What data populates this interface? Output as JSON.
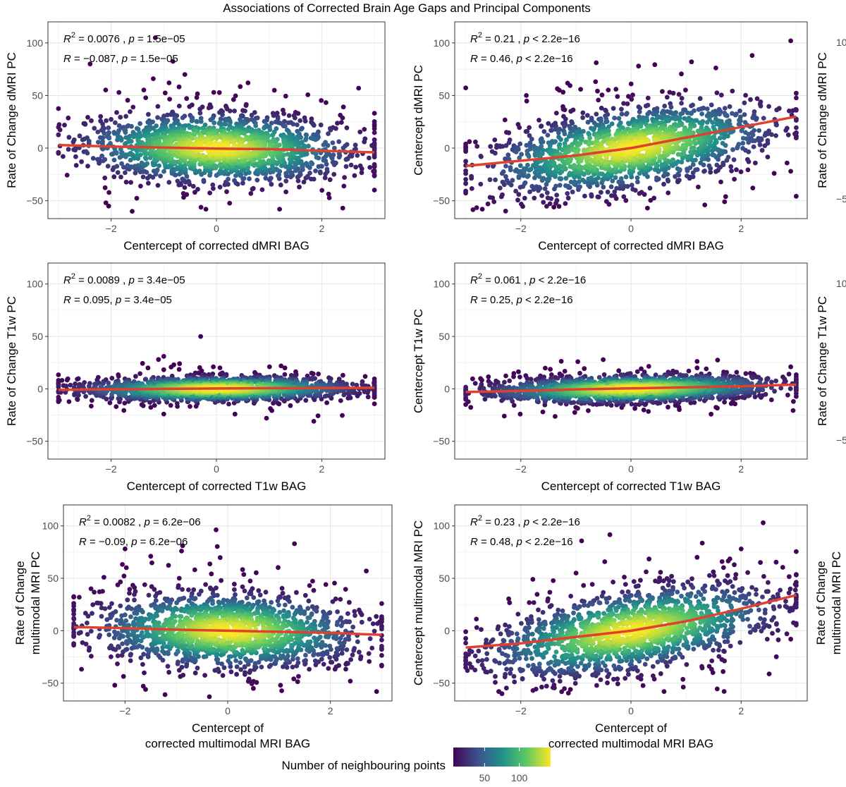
{
  "title": "Associations of Corrected Brain Age Gaps and Principal Components",
  "colorbar": {
    "title": "Number of neighbouring points",
    "ticks": [
      "50",
      "100"
    ],
    "tick_values": [
      50,
      100
    ],
    "range": [
      5,
      145
    ],
    "colors": [
      "#440154",
      "#3b528b",
      "#21908c",
      "#5dc963",
      "#fde725"
    ]
  },
  "fit_color": "#e0402e",
  "chart_data": [
    {
      "type": "scatter",
      "xlabel": "Centercept of corrected dMRI BAG",
      "ylabel": [
        "Rate of Change dMRI PC"
      ],
      "stats": [
        {
          "lhs": "R",
          "sup": "2",
          "val": " = 0.0076 , ",
          "pv": " = 1.5e−05"
        },
        {
          "lhs": "R",
          "sup": "",
          "val": " = −0.087, ",
          "pv": " = 1.5e−05"
        }
      ],
      "xlim": [
        -3.2,
        3.2
      ],
      "ylim": [
        -67,
        120
      ],
      "xticks": [
        -2,
        0,
        2
      ],
      "xtick_labels": [
        "−2",
        "0",
        "2"
      ],
      "yticks": [
        -50,
        0,
        50,
        100
      ],
      "ytick_labels": [
        "−50",
        "0",
        "50",
        "100"
      ],
      "grid": true,
      "fit_line": {
        "x": [
          -3,
          -2,
          -1,
          0,
          1,
          2,
          3
        ],
        "y": [
          3,
          1.5,
          0.5,
          -0.5,
          -1,
          -2.5,
          -4
        ]
      },
      "cloud": {
        "slope": -1.2,
        "intercept": 0,
        "sd": 16
      },
      "outliers": [
        [
          -2.4,
          80
        ],
        [
          -1.2,
          66
        ],
        [
          -0.9,
          62
        ],
        [
          -0.6,
          70
        ],
        [
          0.6,
          62
        ],
        [
          1.1,
          55
        ],
        [
          2.7,
          57
        ],
        [
          -2.1,
          -52
        ],
        [
          -0.2,
          -58
        ],
        [
          1.2,
          -58
        ],
        [
          2.4,
          -57
        ],
        [
          -1.6,
          -60
        ]
      ]
    },
    {
      "type": "scatter",
      "xlabel": "Centercept of corrected dMRI BAG",
      "ylabel": [
        "Centercept dMRI PC"
      ],
      "stats": [
        {
          "lhs": "R",
          "sup": "2",
          "val": " = 0.21 , ",
          "pv": " < 2.2e−16"
        },
        {
          "lhs": "R",
          "sup": "",
          "val": " = 0.46, ",
          "pv": " < 2.2e−16"
        }
      ],
      "xlim": [
        -3.2,
        3.2
      ],
      "ylim": [
        -67,
        120
      ],
      "xticks": [
        -2,
        0,
        2
      ],
      "xtick_labels": [
        "−2",
        "0",
        "2"
      ],
      "yticks": [
        -50,
        0,
        50,
        100
      ],
      "ytick_labels": [
        "−50",
        "0",
        "50",
        "100"
      ],
      "grid": true,
      "fit_line": {
        "x": [
          -3,
          -2,
          -1,
          0,
          1,
          2,
          3
        ],
        "y": [
          -17,
          -12,
          -7,
          0,
          10,
          20,
          30
        ]
      },
      "cloud": {
        "slope": 7.8,
        "intercept": 0,
        "sd": 18
      },
      "outliers": [
        [
          2.9,
          102
        ],
        [
          2.2,
          88
        ],
        [
          1.1,
          82
        ],
        [
          -1.3,
          55
        ],
        [
          -1.9,
          50
        ],
        [
          -2.7,
          -58
        ],
        [
          -1.4,
          -56
        ],
        [
          0.3,
          -57
        ],
        [
          1.7,
          -51
        ],
        [
          2.9,
          -22
        ],
        [
          2.6,
          -24
        ]
      ]
    },
    {
      "type": "scatter",
      "xlabel": "Centercept of corrected T1w BAG",
      "ylabel": [
        "Rate of Change T1w PC"
      ],
      "stats": [
        {
          "lhs": "R",
          "sup": "2",
          "val": " = 0.0089 , ",
          "pv": " = 3.4e−05"
        },
        {
          "lhs": "R",
          "sup": "",
          "val": " = 0.095, ",
          "pv": " = 3.4e−05"
        }
      ],
      "xlim": [
        -3.2,
        3.2
      ],
      "ylim": [
        -67,
        120
      ],
      "xticks": [
        -2,
        0,
        2
      ],
      "xtick_labels": [
        "−2",
        "0",
        "2"
      ],
      "yticks": [
        -50,
        0,
        50,
        100
      ],
      "ytick_labels": [
        "−50",
        "0",
        "50",
        "100"
      ],
      "grid": true,
      "fit_line": {
        "x": [
          -3,
          -2,
          -1,
          0,
          1,
          2,
          3
        ],
        "y": [
          -1,
          -0.5,
          0,
          0.3,
          0.6,
          0.8,
          1
        ]
      },
      "cloud": {
        "slope": 0.35,
        "intercept": 0,
        "sd": 5.5
      },
      "outliers": [
        [
          -0.3,
          50
        ],
        [
          -1.0,
          31
        ],
        [
          -1.1,
          28
        ],
        [
          -0.7,
          24
        ],
        [
          -1.0,
          -24
        ],
        [
          0.95,
          -28
        ],
        [
          -1.3,
          20
        ],
        [
          1.3,
          20
        ]
      ]
    },
    {
      "type": "scatter",
      "xlabel": "Centercept of corrected T1w BAG",
      "ylabel": [
        "Centercept T1w PC"
      ],
      "stats": [
        {
          "lhs": "R",
          "sup": "2",
          "val": " = 0.061 , ",
          "pv": " < 2.2e−16"
        },
        {
          "lhs": "R",
          "sup": "",
          "val": " = 0.25, ",
          "pv": " < 2.2e−16"
        }
      ],
      "xlim": [
        -3.2,
        3.2
      ],
      "ylim": [
        -67,
        120
      ],
      "xticks": [
        -2,
        0,
        2
      ],
      "xtick_labels": [
        "−2",
        "0",
        "2"
      ],
      "yticks": [
        -50,
        0,
        50,
        100
      ],
      "ytick_labels": [
        "−50",
        "0",
        "50",
        "100"
      ],
      "grid": true,
      "fit_line": {
        "x": [
          -3,
          -2,
          -1,
          0,
          1,
          2,
          3
        ],
        "y": [
          -3,
          -2,
          -0.5,
          0.5,
          1.5,
          2.5,
          4
        ]
      },
      "cloud": {
        "slope": 1.1,
        "intercept": 0,
        "sd": 6
      },
      "outliers": [
        [
          -2.3,
          -26
        ],
        [
          2.9,
          21
        ],
        [
          -1.6,
          -22
        ],
        [
          1.2,
          20
        ]
      ]
    },
    {
      "type": "scatter",
      "xlabel": [
        "Centercept of",
        "corrected multimodal MRI BAG"
      ],
      "ylabel": [
        "Rate of Change",
        "multimodal MRI PC"
      ],
      "stats": [
        {
          "lhs": "R",
          "sup": "2",
          "val": " = 0.0082 , ",
          "pv": " = 6.2e−06"
        },
        {
          "lhs": "R",
          "sup": "",
          "val": " = −0.09, ",
          "pv": " = 6.2e−06"
        }
      ],
      "xlim": [
        -3.2,
        3.2
      ],
      "ylim": [
        -67,
        120
      ],
      "xticks": [
        -2,
        0,
        2
      ],
      "xtick_labels": [
        "−2",
        "0",
        "2"
      ],
      "yticks": [
        -50,
        0,
        50,
        100
      ],
      "ytick_labels": [
        "−50",
        "0",
        "50",
        "100"
      ],
      "grid": true,
      "fit_line": {
        "x": [
          -3,
          -2,
          -1,
          0,
          1,
          2,
          3
        ],
        "y": [
          3.5,
          2.5,
          1,
          0,
          -1,
          -2,
          -4
        ]
      },
      "cloud": {
        "slope": -1.3,
        "intercept": 0,
        "sd": 17
      },
      "outliers": [
        [
          -2.0,
          78
        ],
        [
          -0.9,
          76
        ],
        [
          -1.5,
          71
        ],
        [
          1.3,
          83
        ],
        [
          2.7,
          57
        ],
        [
          -2.2,
          -52
        ],
        [
          -1.6,
          -56
        ],
        [
          2.9,
          -58
        ],
        [
          0.5,
          -55
        ]
      ]
    },
    {
      "type": "scatter",
      "xlabel": [
        "Centercept of",
        "corrected multimodal MRI BAG"
      ],
      "ylabel": [
        "Centercept multimodal MRI PC"
      ],
      "stats": [
        {
          "lhs": "R",
          "sup": "2",
          "val": " = 0.23 , ",
          "pv": " < 2.2e−16"
        },
        {
          "lhs": "R",
          "sup": "",
          "val": " = 0.48, ",
          "pv": " < 2.2e−16"
        }
      ],
      "xlim": [
        -3.2,
        3.2
      ],
      "ylim": [
        -67,
        120
      ],
      "xticks": [
        -2,
        0,
        2
      ],
      "xtick_labels": [
        "−2",
        "0",
        "2"
      ],
      "yticks": [
        -50,
        0,
        50,
        100
      ],
      "ytick_labels": [
        "−50",
        "0",
        "50",
        "100"
      ],
      "grid": true,
      "fit_line": {
        "x": [
          -3,
          -2,
          -1,
          0,
          1,
          2,
          3
        ],
        "y": [
          -16,
          -12,
          -6,
          0,
          9,
          21,
          34
        ]
      },
      "cloud": {
        "slope": 8.3,
        "intercept": 0,
        "sd": 18
      },
      "outliers": [
        [
          2.4,
          103
        ],
        [
          2.0,
          78
        ],
        [
          1.2,
          70
        ],
        [
          -2.4,
          -58
        ],
        [
          -1.1,
          -56
        ],
        [
          2.9,
          -8
        ],
        [
          -2.9,
          -35
        ],
        [
          0.6,
          -58
        ]
      ]
    }
  ],
  "partial_panels": [
    {
      "ylabel": [
        "Rate of Change dMRI PC"
      ],
      "ticks": [
        "10",
        "−5"
      ]
    },
    {
      "ylabel": [
        "Rate of Change T1w PC"
      ],
      "ticks": [
        "10",
        "−5"
      ]
    },
    {
      "ylabel": [
        "Rate of Change",
        "multimodal MRI PC"
      ],
      "ticks": []
    }
  ]
}
